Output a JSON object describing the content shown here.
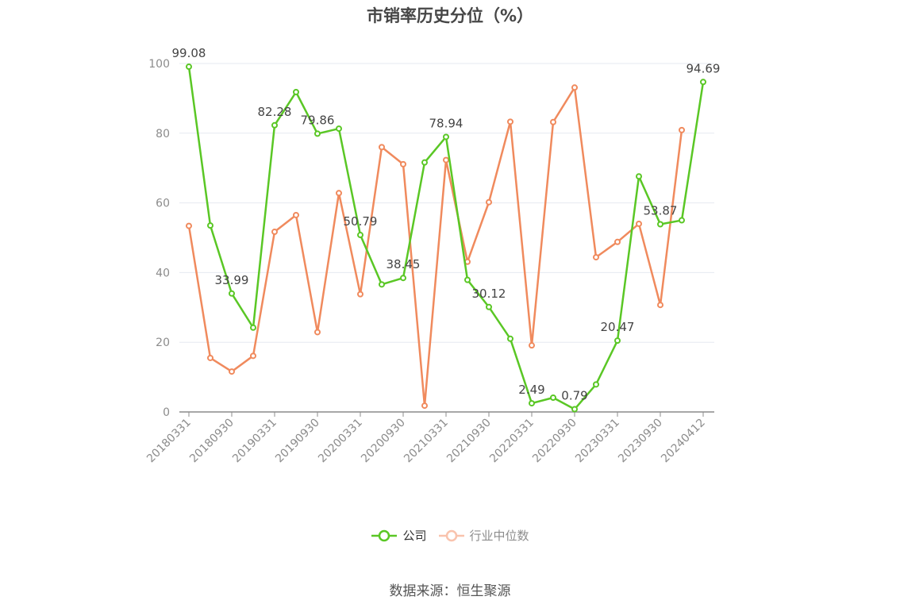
{
  "chart_data": {
    "type": "line",
    "title": "市销率历史分位（%）",
    "source": "数据来源：恒生聚源",
    "ylim": [
      0,
      100
    ],
    "yticks": [
      0,
      20,
      40,
      60,
      80,
      100
    ],
    "x_tick_labels": [
      "20180331",
      "20180930",
      "20190331",
      "20190930",
      "20200331",
      "20200930",
      "20210331",
      "20210930",
      "20220331",
      "20220930",
      "20230331",
      "20230930",
      "20240412"
    ],
    "x": [
      "20180331",
      "20180630",
      "20180930",
      "20181231",
      "20190331",
      "20190630",
      "20190930",
      "20191231",
      "20200331",
      "20200630",
      "20200930",
      "20201231",
      "20210331",
      "20210630",
      "20210930",
      "20211231",
      "20220331",
      "20220630",
      "20220930",
      "20221231",
      "20230331",
      "20230630",
      "20230930",
      "20231231",
      "20240412"
    ],
    "series": [
      {
        "name": "公司",
        "color": "#5ac725",
        "values": [
          99.08,
          53.5,
          33.99,
          24.2,
          82.28,
          91.8,
          79.86,
          81.3,
          50.79,
          36.6,
          38.45,
          71.6,
          78.94,
          37.9,
          30.12,
          21.0,
          2.49,
          4.1,
          0.79,
          7.9,
          20.47,
          67.6,
          53.87,
          55.0,
          94.69
        ],
        "labels": {
          "0": "99.08",
          "2": "33.99",
          "4": "82.28",
          "6": "79.86",
          "8": "50.79",
          "10": "38.45",
          "12": "78.94",
          "14": "30.12",
          "16": "2.49",
          "18": "0.79",
          "20": "20.47",
          "22": "53.87",
          "24": "94.69"
        }
      },
      {
        "name": "行业中位数",
        "color": "#f08a5d",
        "values": [
          53.4,
          15.5,
          11.6,
          16.1,
          51.7,
          56.5,
          22.9,
          62.8,
          33.8,
          76.0,
          71.1,
          1.8,
          72.3,
          43.1,
          60.2,
          83.3,
          19.1,
          83.2,
          93.1,
          44.4,
          48.8,
          54.0,
          30.7,
          80.9,
          null
        ]
      }
    ]
  }
}
